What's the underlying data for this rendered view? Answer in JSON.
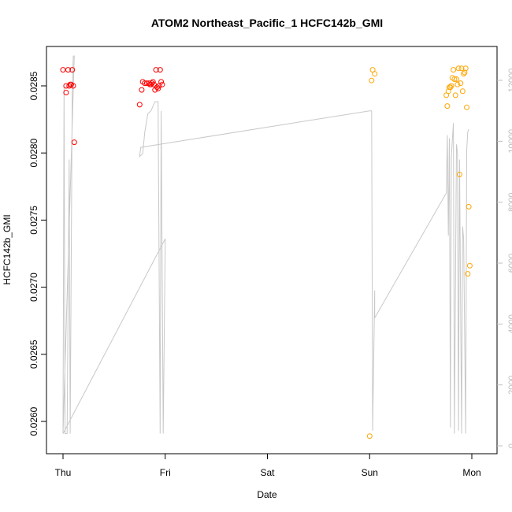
{
  "chart_data": {
    "type": "scatter",
    "title": "ATOM2 Northeast_Pacific_1 HCFC142b_GMI",
    "xlabel": "Date",
    "ylabel": "HCFC142b_GMI",
    "x_ticks": [
      "Thu",
      "Fri",
      "Sat",
      "Sun",
      "Mon"
    ],
    "x_tick_positions_days": [
      0,
      1,
      2,
      3,
      4
    ],
    "xlim_days": [
      -0.2,
      4.1
    ],
    "ylim": [
      0.02575,
      0.02875
    ],
    "y_ticks": [
      0.026,
      0.0265,
      0.027,
      0.0275,
      0.028,
      0.0285
    ],
    "y_tick_labels": [
      "0.0260",
      "0.0265",
      "0.0270",
      "0.0275",
      "0.0280",
      "0.0285"
    ],
    "y2lim": [
      -200,
      13000
    ],
    "y2_ticks": [
      0,
      2000,
      4000,
      6000,
      8000,
      10000,
      12000
    ],
    "y2_tick_labels": [
      "0",
      "2000",
      "4000",
      "6000",
      "8000",
      "10000",
      "12000"
    ],
    "colors": {
      "series1": "#ff0000",
      "series2": "#ffa500",
      "altitude": "#c8c8c8",
      "axis": "#000000",
      "right_axis": "#bdbdbd"
    },
    "series": [
      {
        "color": "#ff0000",
        "points": [
          [
            0.0,
            0.02862
          ],
          [
            0.03,
            0.0285
          ],
          [
            0.03,
            0.02845
          ],
          [
            0.05,
            0.02862
          ],
          [
            0.06,
            0.0285
          ],
          [
            0.07,
            0.02851
          ],
          [
            0.08,
            0.02851
          ],
          [
            0.09,
            0.02862
          ],
          [
            0.1,
            0.0285
          ],
          [
            0.11,
            0.02808
          ],
          [
            0.75,
            0.02836
          ],
          [
            0.77,
            0.02847
          ],
          [
            0.78,
            0.02853
          ],
          [
            0.8,
            0.02852
          ],
          [
            0.82,
            0.02852
          ],
          [
            0.84,
            0.02852
          ],
          [
            0.85,
            0.02851
          ],
          [
            0.86,
            0.02851
          ],
          [
            0.87,
            0.02852
          ],
          [
            0.88,
            0.02853
          ],
          [
            0.89,
            0.02851
          ],
          [
            0.9,
            0.02847
          ],
          [
            0.91,
            0.02862
          ],
          [
            0.92,
            0.02849
          ],
          [
            0.93,
            0.02848
          ],
          [
            0.94,
            0.0285
          ],
          [
            0.95,
            0.02862
          ],
          [
            0.96,
            0.02853
          ],
          [
            0.97,
            0.02851
          ]
        ]
      },
      {
        "color": "#ffa500",
        "points": [
          [
            3.0,
            0.02589
          ],
          [
            3.02,
            0.02854
          ],
          [
            3.03,
            0.02862
          ],
          [
            3.05,
            0.02859
          ],
          [
            3.75,
            0.02843
          ],
          [
            3.76,
            0.02835
          ],
          [
            3.77,
            0.02846
          ],
          [
            3.78,
            0.02849
          ],
          [
            3.79,
            0.02849
          ],
          [
            3.8,
            0.0285
          ],
          [
            3.81,
            0.02856
          ],
          [
            3.82,
            0.02862
          ],
          [
            3.83,
            0.02855
          ],
          [
            3.84,
            0.02843
          ],
          [
            3.85,
            0.02855
          ],
          [
            3.86,
            0.02851
          ],
          [
            3.87,
            0.02863
          ],
          [
            3.88,
            0.02784
          ],
          [
            3.89,
            0.02852
          ],
          [
            3.9,
            0.02863
          ],
          [
            3.91,
            0.02846
          ],
          [
            3.92,
            0.02859
          ],
          [
            3.93,
            0.0286
          ],
          [
            3.94,
            0.02863
          ],
          [
            3.95,
            0.02834
          ],
          [
            3.96,
            0.0271
          ],
          [
            3.97,
            0.0276
          ],
          [
            3.98,
            0.02716
          ]
        ]
      }
    ],
    "altitude_line": [
      [
        0.0,
        400
      ],
      [
        0.01,
        11800
      ],
      [
        0.02,
        400
      ],
      [
        0.04,
        400
      ],
      [
        0.06,
        9400
      ],
      [
        0.07,
        400
      ],
      [
        0.09,
        11600
      ],
      [
        0.1,
        12800
      ],
      [
        0.11,
        12800
      ],
      [
        0.0,
        400
      ],
      [
        1.0,
        6800
      ],
      [
        0.98,
        400
      ],
      [
        0.96,
        11000
      ],
      [
        0.95,
        400
      ],
      [
        0.93,
        11300
      ],
      [
        0.92,
        11300
      ],
      [
        0.9,
        11300
      ],
      [
        0.86,
        11000
      ],
      [
        0.83,
        10900
      ],
      [
        0.8,
        10300
      ],
      [
        0.78,
        9600
      ],
      [
        0.75,
        9500
      ],
      [
        0.76,
        9800
      ],
      [
        3.0,
        11000
      ],
      [
        3.02,
        11000
      ],
      [
        3.03,
        500
      ],
      [
        3.05,
        5100
      ],
      [
        3.05,
        4200
      ],
      [
        3.75,
        8300
      ],
      [
        3.76,
        10200
      ],
      [
        3.77,
        6900
      ],
      [
        3.78,
        10100
      ],
      [
        3.79,
        600
      ],
      [
        3.8,
        9500
      ],
      [
        3.82,
        10600
      ],
      [
        3.83,
        400
      ],
      [
        3.85,
        9900
      ],
      [
        3.86,
        9600
      ],
      [
        3.87,
        500
      ],
      [
        3.88,
        9400
      ],
      [
        3.9,
        400
      ],
      [
        3.91,
        7200
      ],
      [
        3.92,
        6800
      ],
      [
        3.94,
        400
      ],
      [
        3.95,
        9700
      ],
      [
        3.96,
        10300
      ],
      [
        3.97,
        10400
      ]
    ]
  }
}
